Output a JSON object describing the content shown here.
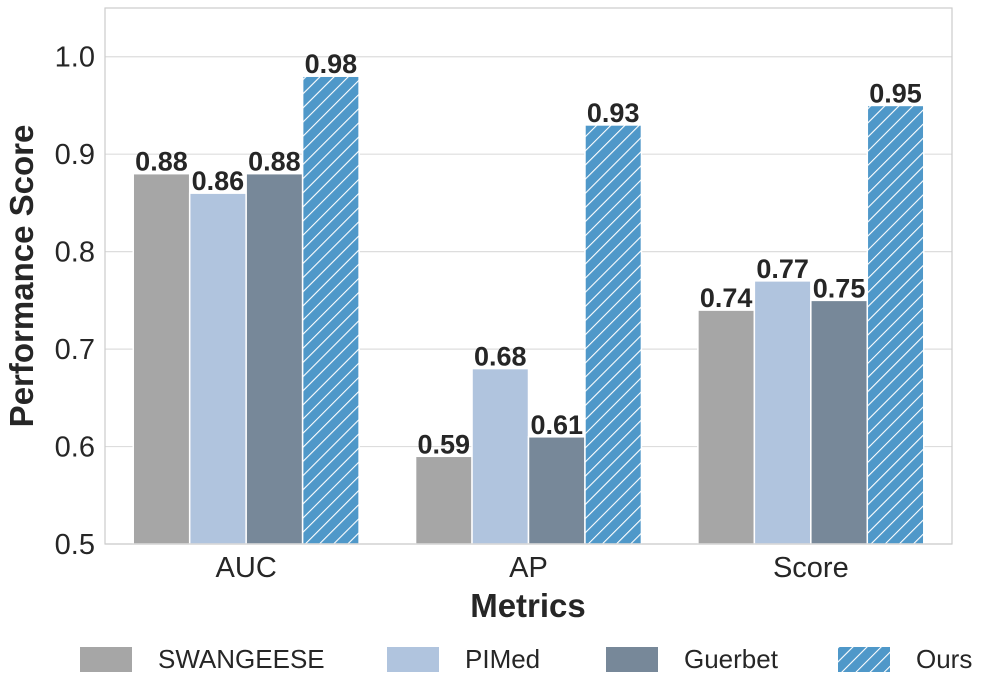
{
  "chart_data": {
    "type": "bar",
    "title": "",
    "xlabel": "Metrics",
    "ylabel": "Performance Score",
    "categories": [
      "AUC",
      "AP",
      "Score"
    ],
    "series": [
      {
        "name": "SWANGEESE",
        "values": [
          0.88,
          0.59,
          0.74
        ],
        "color": "#a6a6a6",
        "hatch": false
      },
      {
        "name": "PIMed",
        "values": [
          0.86,
          0.68,
          0.77
        ],
        "color": "#b0c4de",
        "hatch": false
      },
      {
        "name": "Guerbet",
        "values": [
          0.88,
          0.61,
          0.75
        ],
        "color": "#778899",
        "hatch": false
      },
      {
        "name": "Ours",
        "values": [
          0.98,
          0.93,
          0.95
        ],
        "color": "#4f98c9",
        "hatch": true
      }
    ],
    "ylim": [
      0.5,
      1.05
    ],
    "yticks": [
      "0.5",
      "0.6",
      "0.7",
      "0.8",
      "0.9",
      "1.0"
    ],
    "grid": true,
    "legend_position": "bottom",
    "data_labels": true
  }
}
